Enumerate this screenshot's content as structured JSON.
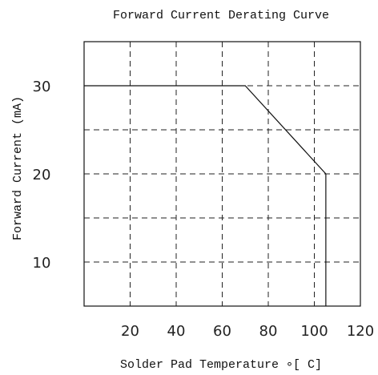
{
  "chart_data": {
    "type": "line",
    "title": "Forward Current Derating Curve",
    "xlabel": "Solder Pad Temperature ∘[  C]",
    "ylabel": "Forward Current (mA)",
    "xlim": [
      0,
      120
    ],
    "ylim": [
      5,
      35
    ],
    "x_ticks": [
      20,
      40,
      60,
      80,
      100,
      120
    ],
    "y_ticks": [
      10,
      20,
      30
    ],
    "grid": true,
    "x_grid_lines": [
      20,
      40,
      60,
      80,
      100
    ],
    "y_grid_lines": [
      10,
      15,
      20,
      25,
      30
    ],
    "series": [
      {
        "x": [
          0,
          70,
          105,
          105
        ],
        "y": [
          30,
          30,
          20,
          5
        ]
      }
    ]
  }
}
